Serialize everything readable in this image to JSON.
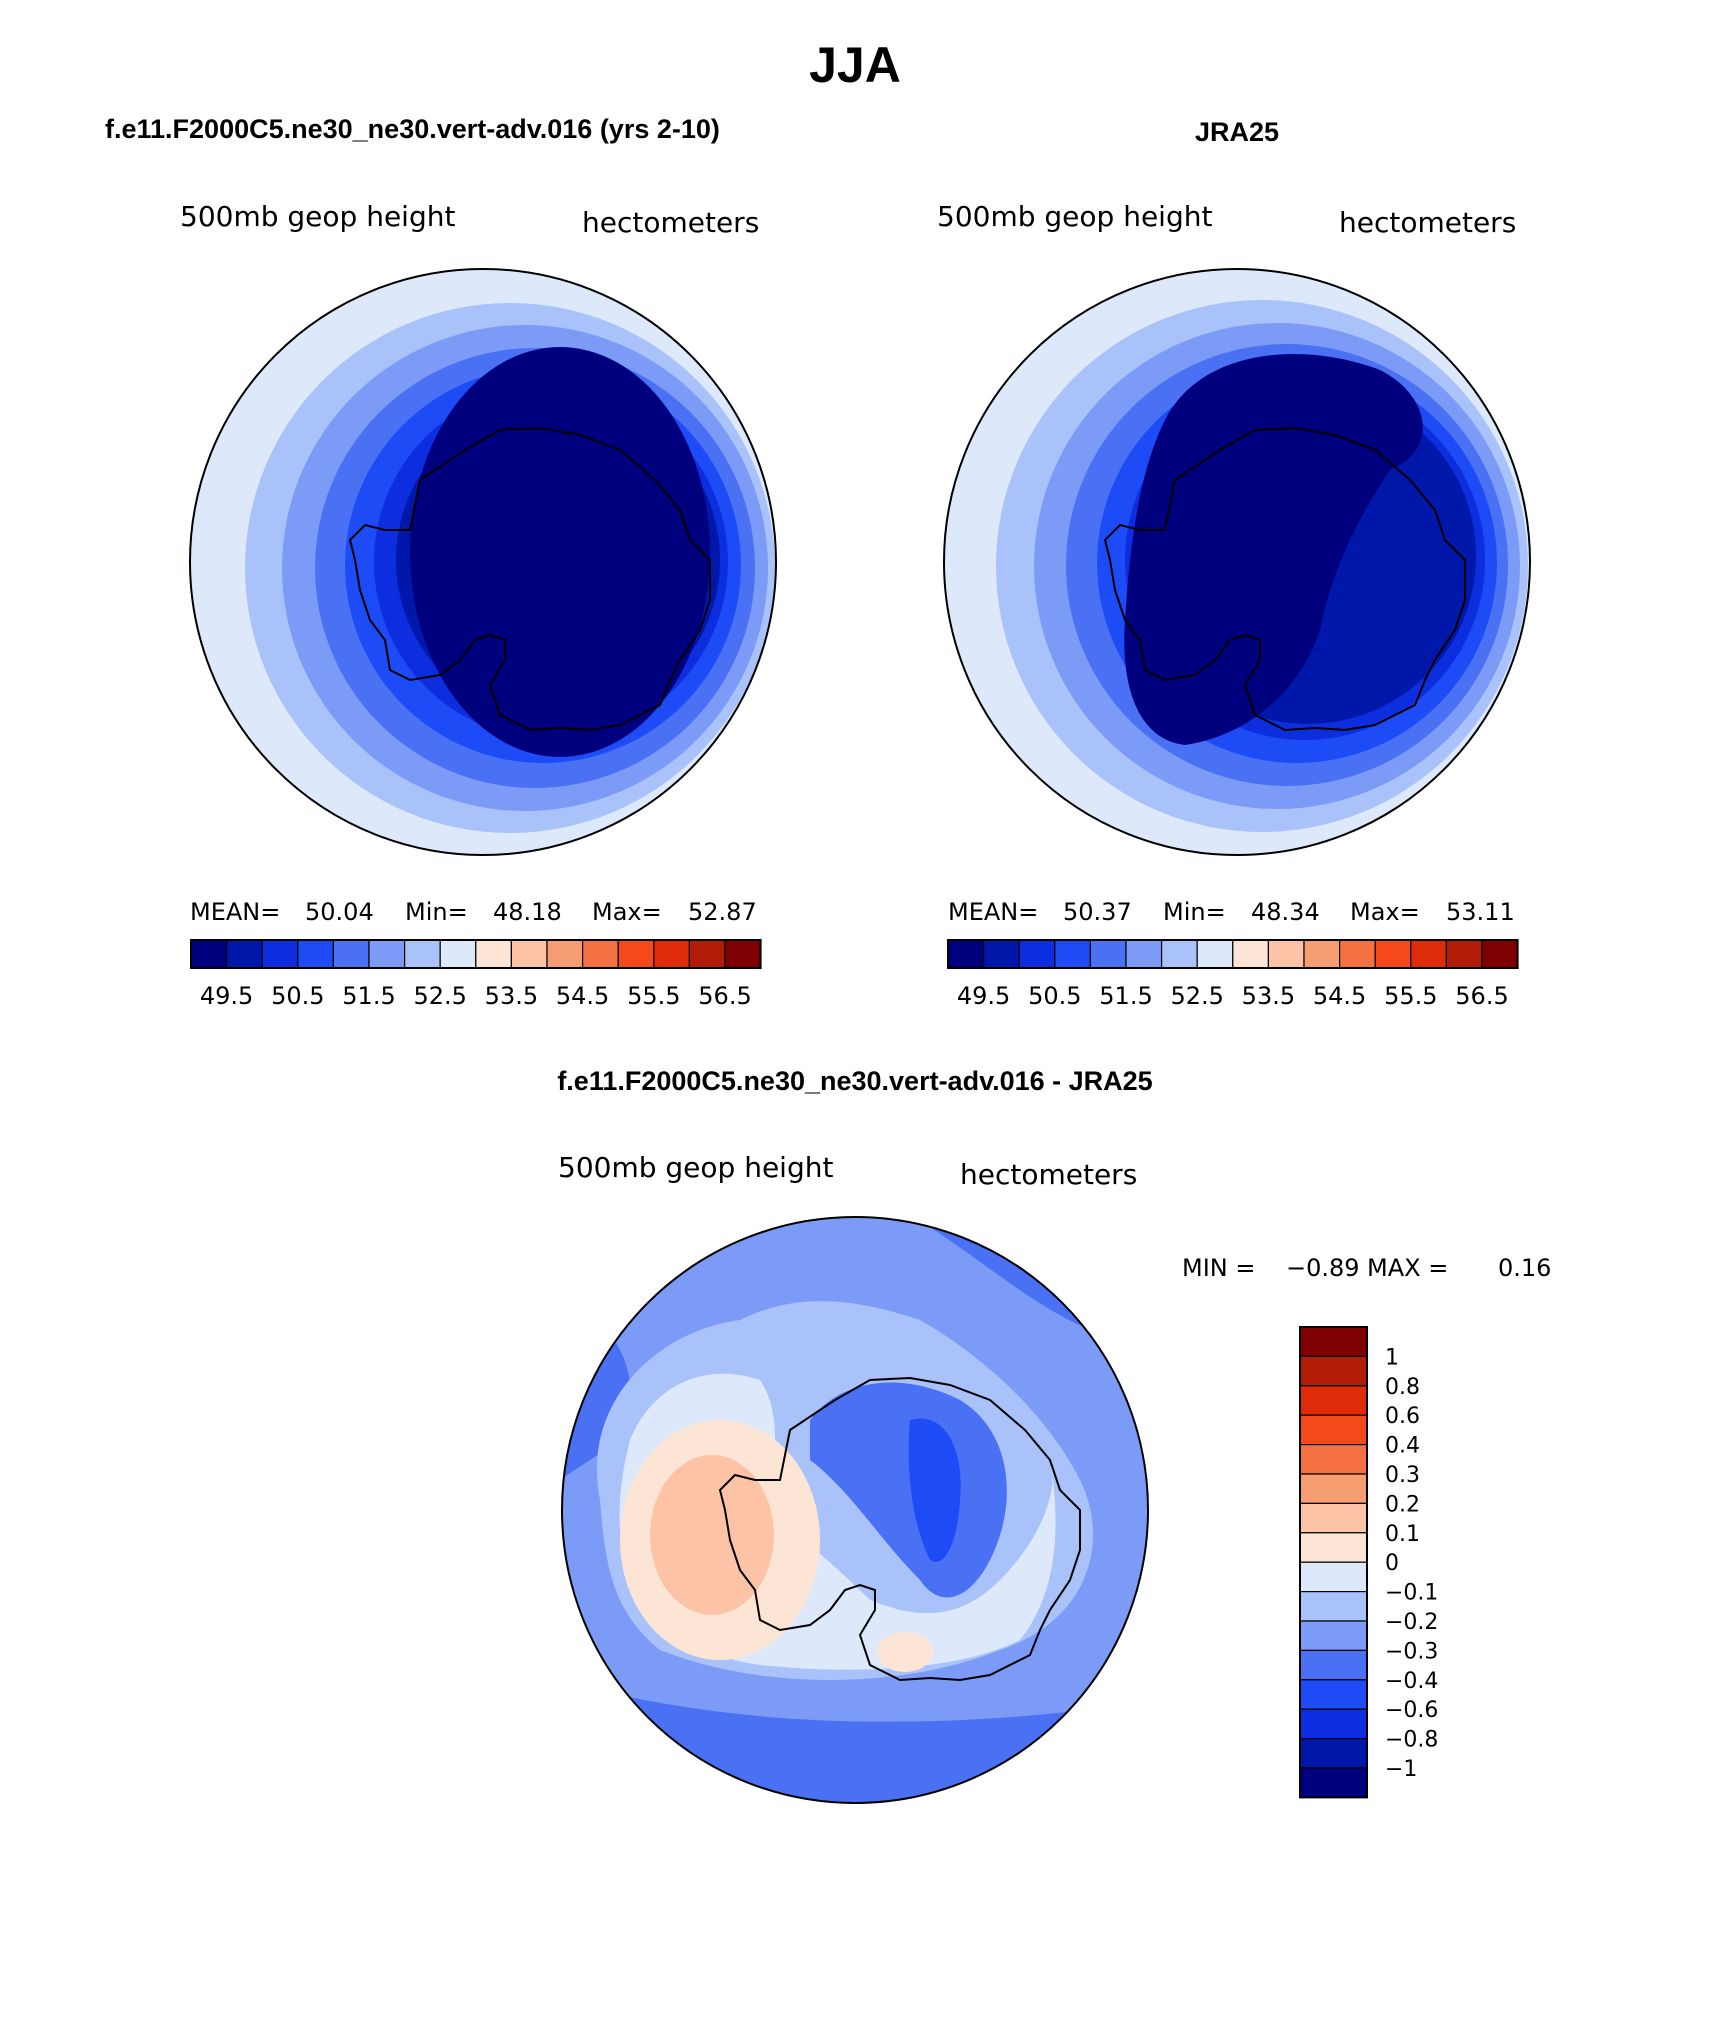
{
  "figure": {
    "title": "JJA",
    "colors": {
      "background": "#ffffff",
      "outline": "#000000"
    }
  },
  "chart_data": [
    {
      "type": "heatmap",
      "map": "south-polar-stereographic",
      "title": "f.e11.F2000C5.ne30_ne30.vert-adv.016 (yrs 2-10)",
      "left_label": "500mb geop height",
      "right_label": "hectometers",
      "stats": {
        "mean_label": "MEAN=",
        "mean": "50.04",
        "min_label": "Min=",
        "min": "48.18",
        "max_label": "Max=",
        "max": "52.87"
      },
      "colorbar": {
        "orientation": "horizontal",
        "colors": [
          "#00007f",
          "#0018aa",
          "#0c2ede",
          "#1d4cf6",
          "#4a70f4",
          "#7b9bf7",
          "#a9c2fa",
          "#dde8fb",
          "#fde5d5",
          "#fcc3a6",
          "#f79d72",
          "#f67142",
          "#f5491c",
          "#df2c08",
          "#b21b05",
          "#7f0000"
        ],
        "tick_labels": [
          "49.5",
          "50.5",
          "51.5",
          "52.5",
          "53.5",
          "54.5",
          "55.5",
          "56.5"
        ]
      },
      "rings_outer_to_pole": [
        "#dde8fb",
        "#a9c2fa",
        "#7b9bf7",
        "#4a70f4",
        "#1d4cf6",
        "#0c2ede",
        "#0018aa",
        "#00007f"
      ]
    },
    {
      "type": "heatmap",
      "map": "south-polar-stereographic",
      "title": "JRA25",
      "left_label": "500mb geop height",
      "right_label": "hectometers",
      "stats": {
        "mean_label": "MEAN=",
        "mean": "50.37",
        "min_label": "Min=",
        "min": "48.34",
        "max_label": "Max=",
        "max": "53.11"
      },
      "colorbar": {
        "orientation": "horizontal",
        "colors": [
          "#00007f",
          "#0018aa",
          "#0c2ede",
          "#1d4cf6",
          "#4a70f4",
          "#7b9bf7",
          "#a9c2fa",
          "#dde8fb",
          "#fde5d5",
          "#fcc3a6",
          "#f79d72",
          "#f67142",
          "#f5491c",
          "#df2c08",
          "#b21b05",
          "#7f0000"
        ],
        "tick_labels": [
          "49.5",
          "50.5",
          "51.5",
          "52.5",
          "53.5",
          "54.5",
          "55.5",
          "56.5"
        ]
      },
      "rings_outer_to_pole": [
        "#dde8fb",
        "#a9c2fa",
        "#7b9bf7",
        "#4a70f4",
        "#1d4cf6",
        "#0c2ede",
        "#0018aa",
        "#00007f"
      ]
    },
    {
      "type": "heatmap",
      "map": "south-polar-stereographic",
      "title": "f.e11.F2000C5.ne30_ne30.vert-adv.016 - JRA25",
      "left_label": "500mb geop height",
      "right_label": "hectometers",
      "stats": {
        "min_label": "MIN =",
        "min": "−0.89",
        "max_label": "MAX =",
        "max": "0.16"
      },
      "colorbar": {
        "orientation": "vertical",
        "colors_top_to_bottom": [
          "#7f0000",
          "#b21b05",
          "#df2c08",
          "#f5491c",
          "#f67142",
          "#f79d72",
          "#fcc3a6",
          "#fde5d5",
          "#dde8fb",
          "#a9c2fa",
          "#7b9bf7",
          "#4a70f4",
          "#1d4cf6",
          "#0c2ede",
          "#0018aa",
          "#00007f"
        ],
        "tick_labels_top_to_bottom": [
          "1",
          "0.8",
          "0.6",
          "0.4",
          "0.3",
          "0.2",
          "0.1",
          "0",
          "−0.1",
          "−0.2",
          "−0.3",
          "−0.4",
          "−0.6",
          "−0.8",
          "−1"
        ]
      }
    }
  ]
}
